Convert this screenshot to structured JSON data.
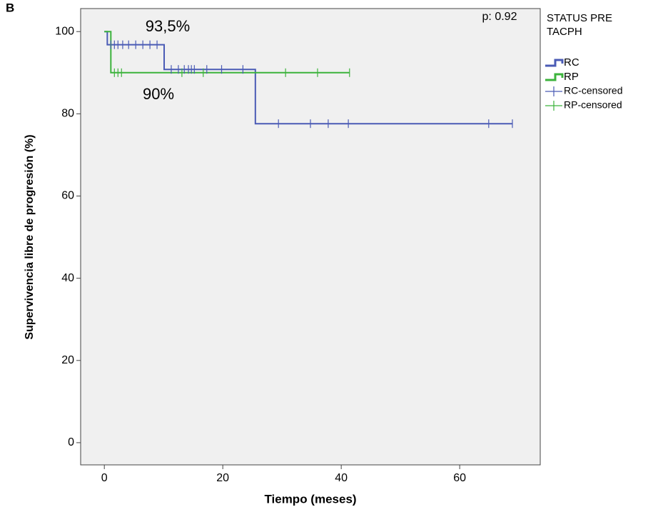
{
  "chart_data": {
    "type": "kaplan-meier",
    "panel_label": "B",
    "x_label": "Tiempo (meses)",
    "y_label": "Supervivencia libre de progresión (%)",
    "annotations": [
      "93,5%",
      "90%",
      "p: 0.92"
    ],
    "legend_title": "STATUS PRE TACPH",
    "legend_position": "right",
    "background": "#f0f0f0",
    "grid": false,
    "xlim": [
      -4,
      73.6
    ],
    "ylim": [
      -5.4,
      105.6
    ],
    "xticks": [
      0,
      20,
      40,
      60
    ],
    "yticks": [
      0,
      20,
      40,
      60,
      80,
      100
    ],
    "series": [
      {
        "name": "RC",
        "style": "step",
        "color": "#4a5bb5",
        "x": [
          0,
          0.5,
          0.5,
          10.1,
          10.1,
          25.5,
          25.5,
          68.9
        ],
        "values": [
          100,
          100,
          96.8,
          96.8,
          90.8,
          90.8,
          77.6,
          77.6
        ]
      },
      {
        "name": "RP",
        "style": "step",
        "color": "#3cb33c",
        "x": [
          0,
          1.1,
          1.1,
          41.4
        ],
        "values": [
          100,
          100,
          90,
          90
        ]
      },
      {
        "name": "RC-censored",
        "style": "censor",
        "color": "#4a5bb5",
        "x": [
          1.1,
          1.7,
          2.3,
          3.1,
          4.1,
          5.3,
          6.5,
          7.7,
          8.9,
          11.3,
          12.5,
          13.5,
          14.2,
          14.7,
          15.2,
          17.3,
          19.8,
          23.4,
          29.4,
          34.8,
          37.8,
          41.2,
          64.9,
          68.9
        ],
        "values": [
          96.8,
          96.8,
          96.8,
          96.8,
          96.8,
          96.8,
          96.8,
          96.8,
          96.8,
          90.8,
          90.8,
          90.8,
          90.8,
          90.8,
          90.8,
          90.8,
          90.8,
          90.8,
          77.6,
          77.6,
          77.6,
          77.6,
          77.6,
          77.6
        ]
      },
      {
        "name": "RP-censored",
        "style": "censor",
        "color": "#3cb33c",
        "x": [
          1.7,
          2.3,
          2.9,
          13.1,
          16.7,
          30.6,
          36,
          41.4
        ],
        "values": [
          90,
          90,
          90,
          90,
          90,
          90,
          90,
          90
        ]
      }
    ]
  }
}
